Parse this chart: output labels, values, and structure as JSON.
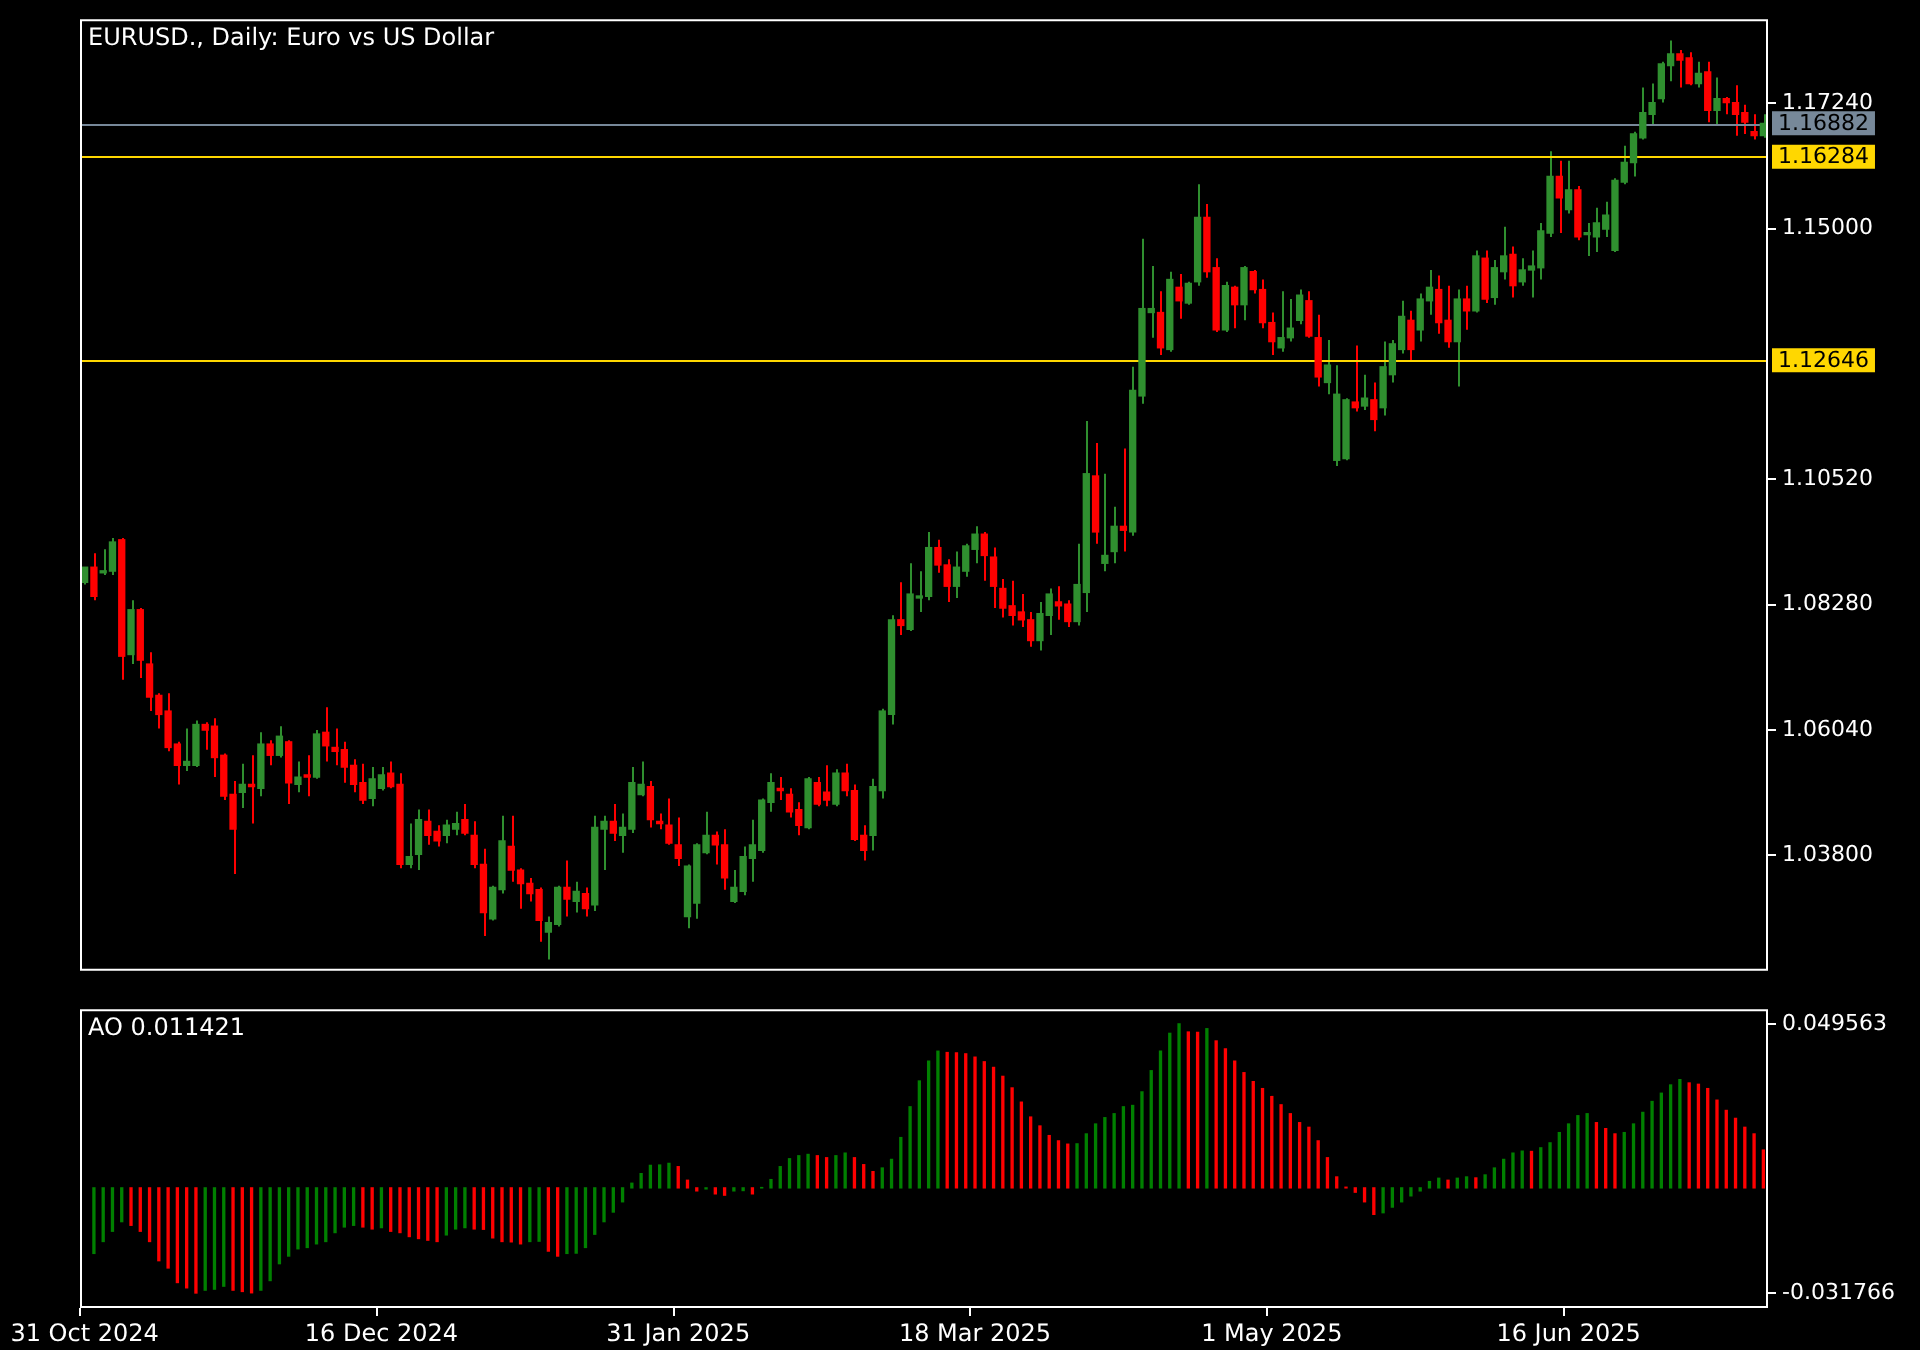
{
  "chart_data": [
    {
      "type": "candlestick",
      "title": "EURUSD., Daily: Euro vs US Dollar",
      "categories": [
        null,
        null,
        null,
        null,
        null,
        null,
        null,
        null,
        null,
        null,
        null,
        null,
        null,
        null,
        null,
        null,
        null,
        null,
        null,
        null,
        null,
        null,
        null,
        null,
        null,
        null,
        null,
        null,
        null,
        null,
        null,
        null,
        null,
        null,
        null,
        null,
        null,
        null,
        null,
        null,
        null,
        null,
        null,
        null,
        null,
        null,
        null,
        null,
        null,
        null,
        null,
        null,
        null,
        null,
        null,
        null,
        null,
        null,
        null,
        null,
        null,
        null,
        null,
        null,
        null,
        null,
        null,
        null,
        null,
        null,
        null,
        null,
        null,
        null,
        null,
        null,
        null,
        null,
        null,
        null,
        null,
        null,
        null,
        null,
        null,
        null,
        null,
        null,
        null,
        null,
        null,
        null,
        null,
        null,
        null,
        null,
        null,
        null,
        null,
        null,
        null,
        null,
        null,
        null,
        null,
        null,
        null,
        null,
        null,
        null,
        null,
        null,
        null,
        null,
        null,
        null,
        null,
        null,
        null,
        null,
        null,
        null,
        null,
        null,
        null,
        null,
        null,
        null,
        null,
        null,
        null,
        null,
        null,
        null,
        null,
        null,
        null,
        null,
        null,
        null,
        null,
        null,
        null,
        null,
        null,
        null,
        null,
        null,
        null,
        null,
        null,
        null,
        null,
        null,
        null,
        null,
        null,
        null,
        null,
        null,
        null,
        null,
        null,
        null,
        null,
        null,
        null,
        null,
        null,
        null,
        null,
        null,
        null,
        null,
        null,
        null,
        null,
        null,
        null,
        null,
        null,
        null
      ],
      "ohlc": [
        [
          1.0868,
          1.0895,
          1.0864,
          1.0895
        ],
        [
          1.0895,
          1.092,
          1.0836,
          1.0843
        ],
        [
          1.0885,
          1.0927,
          1.0881,
          1.0888
        ],
        [
          1.0888,
          1.0947,
          1.0881,
          1.094
        ],
        [
          1.0944,
          1.0947,
          1.0694,
          1.0736
        ],
        [
          1.0739,
          1.0836,
          1.0722,
          1.0819
        ],
        [
          1.0819,
          1.0822,
          1.0697,
          1.0729
        ],
        [
          1.0722,
          1.0743,
          1.0638,
          1.0663
        ],
        [
          1.0666,
          1.067,
          1.0607,
          1.0632
        ],
        [
          1.0638,
          1.067,
          1.0566,
          1.0573
        ],
        [
          1.0579,
          1.0583,
          1.0507,
          1.0541
        ],
        [
          1.0541,
          1.0607,
          1.0531,
          1.0548
        ],
        [
          1.0541,
          1.0621,
          1.0538,
          1.0614
        ],
        [
          1.0614,
          1.0618,
          1.0569,
          1.0604
        ],
        [
          1.0611,
          1.0625,
          1.052,
          1.0555
        ],
        [
          1.0559,
          1.0562,
          1.0479,
          1.0486
        ],
        [
          1.0489,
          1.0513,
          1.0347,
          1.0427
        ],
        [
          1.0493,
          1.0544,
          1.0465,
          1.0507
        ],
        [
          1.0507,
          1.0559,
          1.0437,
          1.0503
        ],
        [
          1.05,
          1.06,
          1.0486,
          1.0579
        ],
        [
          1.0579,
          1.0586,
          1.0541,
          1.0559
        ],
        [
          1.0559,
          1.0611,
          1.0555,
          1.0593
        ],
        [
          1.0583,
          1.0586,
          1.0472,
          1.051
        ],
        [
          1.0507,
          1.0548,
          1.0493,
          1.052
        ],
        [
          1.0524,
          1.0559,
          1.0486,
          1.052
        ],
        [
          1.052,
          1.0604,
          1.0517,
          1.0597
        ],
        [
          1.06,
          1.0645,
          1.0548,
          1.0576
        ],
        [
          1.0573,
          1.0607,
          1.0541,
          1.0566
        ],
        [
          1.0569,
          1.0583,
          1.051,
          1.0538
        ],
        [
          1.0541,
          1.0552,
          1.0493,
          1.0507
        ],
        [
          1.051,
          1.0544,
          1.0472,
          1.0479
        ],
        [
          1.0482,
          1.0538,
          1.0468,
          1.0517
        ],
        [
          1.05,
          1.0538,
          1.0496,
          1.0524
        ],
        [
          1.0527,
          1.0548,
          1.05,
          1.0503
        ],
        [
          1.0507,
          1.0527,
          1.0357,
          1.0364
        ],
        [
          1.0364,
          1.0437,
          1.0357,
          1.0378
        ],
        [
          1.0382,
          1.0462,
          1.0354,
          1.0444
        ],
        [
          1.0441,
          1.0462,
          1.0399,
          1.0416
        ],
        [
          1.0423,
          1.0434,
          1.0396,
          1.0406
        ],
        [
          1.0416,
          1.0444,
          1.0402,
          1.0434
        ],
        [
          1.0427,
          1.0458,
          1.0416,
          1.0437
        ],
        [
          1.0444,
          1.0472,
          1.0416,
          1.042
        ],
        [
          1.0416,
          1.0441,
          1.0357,
          1.0364
        ],
        [
          1.0364,
          1.0392,
          1.0236,
          1.0278
        ],
        [
          1.0267,
          1.0326,
          1.0264,
          1.0323
        ],
        [
          1.0319,
          1.0451,
          1.0312,
          1.0406
        ],
        [
          1.0396,
          1.0451,
          1.0333,
          1.0354
        ],
        [
          1.0354,
          1.0357,
          1.0285,
          1.033
        ],
        [
          1.033,
          1.034,
          1.0298,
          1.0312
        ],
        [
          1.0319,
          1.0323,
          1.0226,
          1.0264
        ],
        [
          1.0243,
          1.0271,
          1.0194,
          1.026
        ],
        [
          1.0257,
          1.0326,
          1.0253,
          1.0323
        ],
        [
          1.0323,
          1.0371,
          1.0271,
          1.0302
        ],
        [
          1.0298,
          1.0333,
          1.0278,
          1.0316
        ],
        [
          1.0312,
          1.0323,
          1.0271,
          1.0285
        ],
        [
          1.0292,
          1.0451,
          1.0281,
          1.043
        ],
        [
          1.0427,
          1.0451,
          1.0354,
          1.0441
        ],
        [
          1.0441,
          1.0472,
          1.0406,
          1.042
        ],
        [
          1.0416,
          1.0455,
          1.0385,
          1.043
        ],
        [
          1.0427,
          1.0538,
          1.042,
          1.051
        ],
        [
          1.0489,
          1.0548,
          1.0486,
          1.0507
        ],
        [
          1.0503,
          1.0513,
          1.043,
          1.0444
        ],
        [
          1.0441,
          1.0455,
          1.0427,
          1.0437
        ],
        [
          1.0434,
          1.0482,
          1.0399,
          1.0402
        ],
        [
          1.0399,
          1.0448,
          1.0361,
          1.0375
        ],
        [
          1.0271,
          1.0364,
          1.025,
          1.0361
        ],
        [
          1.0295,
          1.0402,
          1.0267,
          1.0399
        ],
        [
          1.0385,
          1.0458,
          1.0382,
          1.0416
        ],
        [
          1.0416,
          1.0423,
          1.0364,
          1.0399
        ],
        [
          1.0399,
          1.0427,
          1.0319,
          1.034
        ],
        [
          1.0298,
          1.0354,
          1.0295,
          1.0323
        ],
        [
          1.0316,
          1.0396,
          1.0309,
          1.0378
        ],
        [
          1.0375,
          1.0444,
          1.0333,
          1.0399
        ],
        [
          1.0389,
          1.0482,
          1.0385,
          1.0479
        ],
        [
          1.0475,
          1.0527,
          1.0458,
          1.051
        ],
        [
          1.05,
          1.052,
          1.0479,
          1.0496
        ],
        [
          1.0489,
          1.05,
          1.0448,
          1.0458
        ],
        [
          1.0462,
          1.0475,
          1.0416,
          1.0434
        ],
        [
          1.043,
          1.052,
          1.0427,
          1.0517
        ],
        [
          1.051,
          1.052,
          1.0468,
          1.0472
        ],
        [
          1.0493,
          1.0541,
          1.0468,
          1.0479
        ],
        [
          1.0472,
          1.0534,
          1.0468,
          1.0527
        ],
        [
          1.0527,
          1.0544,
          1.0486,
          1.0496
        ],
        [
          1.0496,
          1.0507,
          1.0406,
          1.0409
        ],
        [
          1.0416,
          1.0434,
          1.0371,
          1.0389
        ],
        [
          1.0416,
          1.0517,
          1.0389,
          1.0503
        ],
        [
          1.0496,
          1.0642,
          1.0482,
          1.0638
        ],
        [
          1.0632,
          1.0809,
          1.0614,
          1.0801
        ],
        [
          1.0801,
          1.0868,
          1.0774,
          1.0791
        ],
        [
          1.0784,
          1.0902,
          1.0781,
          1.0847
        ],
        [
          1.084,
          1.0888,
          1.0815,
          1.0843
        ],
        [
          1.0843,
          1.0958,
          1.0836,
          1.093
        ],
        [
          1.093,
          1.0944,
          1.0885,
          1.0899
        ],
        [
          1.0899,
          1.0909,
          1.0833,
          1.0861
        ],
        [
          1.0861,
          1.0923,
          1.084,
          1.0895
        ],
        [
          1.0888,
          1.0937,
          1.0878,
          1.0933
        ],
        [
          1.0927,
          1.0968,
          1.0902,
          1.0954
        ],
        [
          1.0954,
          1.0958,
          1.0871,
          1.0916
        ],
        [
          1.0913,
          1.093,
          1.0822,
          1.0861
        ],
        [
          1.0857,
          1.0874,
          1.0805,
          1.0822
        ],
        [
          1.0826,
          1.0871,
          1.0791,
          1.0809
        ],
        [
          1.0815,
          1.0847,
          1.0788,
          1.0801
        ],
        [
          1.0801,
          1.0815,
          1.0753,
          1.0764
        ],
        [
          1.0764,
          1.0833,
          1.0746,
          1.0812
        ],
        [
          1.0809,
          1.0857,
          1.0774,
          1.0847
        ],
        [
          1.0833,
          1.0861,
          1.0801,
          1.0826
        ],
        [
          1.0829,
          1.0836,
          1.0788,
          1.0798
        ],
        [
          1.0798,
          1.0937,
          1.0791,
          1.0864
        ],
        [
          1.085,
          1.1156,
          1.0815,
          1.1062
        ],
        [
          1.1058,
          1.1117,
          1.0937,
          1.0958
        ],
        [
          1.0902,
          1.1062,
          1.0888,
          1.0916
        ],
        [
          1.0923,
          1.1003,
          1.0902,
          1.0968
        ],
        [
          1.0968,
          1.1107,
          1.0923,
          1.0961
        ],
        [
          1.0958,
          1.1253,
          1.0951,
          1.1211
        ],
        [
          1.1201,
          1.1482,
          1.1187,
          1.1357
        ],
        [
          1.135,
          1.1433,
          1.1305,
          1.1357
        ],
        [
          1.135,
          1.1388,
          1.1274,
          1.1287
        ],
        [
          1.1284,
          1.1423,
          1.128,
          1.1409
        ],
        [
          1.1395,
          1.1419,
          1.1339,
          1.1371
        ],
        [
          1.1367,
          1.1405,
          1.1364,
          1.1402
        ],
        [
          1.1405,
          1.1579,
          1.1398,
          1.152
        ],
        [
          1.152,
          1.1544,
          1.1412,
          1.1423
        ],
        [
          1.143,
          1.1447,
          1.1315,
          1.1319
        ],
        [
          1.1319,
          1.1405,
          1.1315,
          1.1398
        ],
        [
          1.1395,
          1.1398,
          1.1322,
          1.1364
        ],
        [
          1.1364,
          1.1433,
          1.1336,
          1.143
        ],
        [
          1.1423,
          1.1426,
          1.1384,
          1.1391
        ],
        [
          1.1391,
          1.1409,
          1.1322,
          1.1332
        ],
        [
          1.1332,
          1.135,
          1.1274,
          1.1298
        ],
        [
          1.1287,
          1.1388,
          1.128,
          1.1305
        ],
        [
          1.1305,
          1.1374,
          1.1298,
          1.1322
        ],
        [
          1.1336,
          1.1391,
          1.1329,
          1.1381
        ],
        [
          1.1371,
          1.1388,
          1.1305,
          1.1308
        ],
        [
          1.1305,
          1.1346,
          1.1218,
          1.1235
        ],
        [
          1.1225,
          1.1301,
          1.1204,
          1.1256
        ],
        [
          1.1086,
          1.1256,
          1.1076,
          1.1204
        ],
        [
          1.1089,
          1.1197,
          1.1086,
          1.1194
        ],
        [
          1.119,
          1.1291,
          1.1173,
          1.118
        ],
        [
          1.1183,
          1.1239,
          1.1176,
          1.1197
        ],
        [
          1.1194,
          1.1225,
          1.1138,
          1.1159
        ],
        [
          1.118,
          1.1298,
          1.1166,
          1.1253
        ],
        [
          1.1239,
          1.1301,
          1.1225,
          1.1294
        ],
        [
          1.1284,
          1.1371,
          1.1277,
          1.1343
        ],
        [
          1.1336,
          1.1353,
          1.1263,
          1.1284
        ],
        [
          1.1319,
          1.1384,
          1.1298,
          1.1374
        ],
        [
          1.1371,
          1.1426,
          1.1346,
          1.1395
        ],
        [
          1.1391,
          1.1416,
          1.1312,
          1.1332
        ],
        [
          1.1336,
          1.1398,
          1.1287,
          1.1298
        ],
        [
          1.1298,
          1.1391,
          1.1218,
          1.1374
        ],
        [
          1.1374,
          1.1398,
          1.1319,
          1.1353
        ],
        [
          1.1353,
          1.1461,
          1.135,
          1.1451
        ],
        [
          1.1447,
          1.1461,
          1.1367,
          1.1374
        ],
        [
          1.1377,
          1.1444,
          1.1364,
          1.143
        ],
        [
          1.1423,
          1.1503,
          1.1409,
          1.1451
        ],
        [
          1.1454,
          1.1468,
          1.1377,
          1.1398
        ],
        [
          1.1405,
          1.1447,
          1.1398,
          1.1426
        ],
        [
          1.1426,
          1.1461,
          1.1377,
          1.1433
        ],
        [
          1.143,
          1.151,
          1.1409,
          1.1496
        ],
        [
          1.1492,
          1.1638,
          1.1485,
          1.1593
        ],
        [
          1.1593,
          1.1621,
          1.1492,
          1.1555
        ],
        [
          1.1534,
          1.1621,
          1.1527,
          1.1569
        ],
        [
          1.1569,
          1.1576,
          1.1479,
          1.1485
        ],
        [
          1.1489,
          1.151,
          1.1451,
          1.1492
        ],
        [
          1.1485,
          1.1537,
          1.1458,
          1.151
        ],
        [
          1.1499,
          1.1548,
          1.1485,
          1.1524
        ],
        [
          1.1461,
          1.159,
          1.1458,
          1.1586
        ],
        [
          1.1583,
          1.1648,
          1.1579,
          1.1618
        ],
        [
          1.1618,
          1.1673,
          1.1593,
          1.1669
        ],
        [
          1.1662,
          1.1752,
          1.1659,
          1.1707
        ],
        [
          1.1704,
          1.1759,
          1.1683,
          1.1725
        ],
        [
          1.1732,
          1.1798,
          1.1725,
          1.1794
        ],
        [
          1.1791,
          1.1836,
          1.1763,
          1.1812
        ],
        [
          1.1812,
          1.1819,
          1.1752,
          1.1801
        ],
        [
          1.1805,
          1.1815,
          1.1756,
          1.1759
        ],
        [
          1.1759,
          1.1798,
          1.1752,
          1.1777
        ],
        [
          1.178,
          1.1798,
          1.169,
          1.1711
        ],
        [
          1.1711,
          1.177,
          1.1687,
          1.1732
        ],
        [
          1.1732,
          1.1735,
          1.1704,
          1.1725
        ],
        [
          1.1725,
          1.1756,
          1.1666,
          1.1704
        ],
        [
          1.1707,
          1.1721,
          1.1669,
          1.169
        ],
        [
          1.1673,
          1.1704,
          1.1659,
          1.1666
        ],
        [
          1.1666,
          1.1704,
          1.1662,
          1.1688
        ]
      ],
      "colors": [
        "#2f8f2f",
        "#ff0000",
        "#2f8f2f",
        "#2f8f2f",
        "#ff0000",
        "#2f8f2f",
        "#ff0000",
        "#ff0000",
        "#ff0000",
        "#ff0000",
        "#ff0000",
        "#2f8f2f",
        "#2f8f2f",
        "#ff0000",
        "#ff0000",
        "#ff0000",
        "#ff0000",
        "#2f8f2f",
        "#ff0000",
        "#2f8f2f",
        "#ff0000",
        "#2f8f2f",
        "#ff0000",
        "#2f8f2f",
        "#ff0000",
        "#2f8f2f",
        "#ff0000",
        "#ff0000",
        "#ff0000",
        "#ff0000",
        "#ff0000",
        "#2f8f2f",
        "#2f8f2f",
        "#ff0000",
        "#ff0000",
        "#2f8f2f",
        "#2f8f2f",
        "#ff0000",
        "#ff0000",
        "#2f8f2f",
        "#2f8f2f",
        "#ff0000",
        "#ff0000",
        "#ff0000",
        "#2f8f2f",
        "#2f8f2f",
        "#ff0000",
        "#ff0000",
        "#ff0000",
        "#ff0000",
        "#2f8f2f",
        "#2f8f2f",
        "#ff0000",
        "#2f8f2f",
        "#ff0000",
        "#2f8f2f",
        "#2f8f2f",
        "#ff0000",
        "#2f8f2f",
        "#2f8f2f",
        "#2f8f2f",
        "#ff0000",
        "#ff0000",
        "#ff0000",
        "#ff0000",
        "#2f8f2f",
        "#2f8f2f",
        "#2f8f2f",
        "#ff0000",
        "#ff0000",
        "#2f8f2f",
        "#2f8f2f",
        "#2f8f2f",
        "#2f8f2f",
        "#2f8f2f",
        "#ff0000",
        "#ff0000",
        "#ff0000",
        "#2f8f2f",
        "#ff0000",
        "#ff0000",
        "#2f8f2f",
        "#ff0000",
        "#ff0000",
        "#ff0000",
        "#2f8f2f",
        "#2f8f2f",
        "#2f8f2f",
        "#ff0000",
        "#2f8f2f",
        "#2f8f2f",
        "#2f8f2f",
        "#ff0000",
        "#ff0000",
        "#2f8f2f",
        "#2f8f2f",
        "#2f8f2f",
        "#ff0000",
        "#ff0000",
        "#ff0000",
        "#ff0000",
        "#ff0000",
        "#ff0000",
        "#2f8f2f",
        "#2f8f2f",
        "#ff0000",
        "#ff0000",
        "#2f8f2f",
        "#2f8f2f",
        "#ff0000",
        "#2f8f2f",
        "#2f8f2f",
        "#ff0000",
        "#2f8f2f",
        "#2f8f2f",
        "#2f8f2f",
        "#ff0000",
        "#2f8f2f",
        "#ff0000",
        "#2f8f2f",
        "#2f8f2f",
        "#ff0000",
        "#ff0000",
        "#2f8f2f",
        "#ff0000",
        "#2f8f2f",
        "#ff0000",
        "#ff0000",
        "#ff0000",
        "#2f8f2f",
        "#2f8f2f",
        "#2f8f2f",
        "#ff0000",
        "#ff0000",
        "#2f8f2f",
        "#2f8f2f",
        "#2f8f2f",
        "#ff0000",
        "#2f8f2f",
        "#ff0000",
        "#2f8f2f",
        "#2f8f2f",
        "#2f8f2f",
        "#ff0000",
        "#2f8f2f",
        "#2f8f2f",
        "#ff0000",
        "#ff0000",
        "#2f8f2f",
        "#ff0000",
        "#2f8f2f",
        "#ff0000",
        "#2f8f2f",
        "#2f8f2f",
        "#ff0000",
        "#2f8f2f",
        "#2f8f2f",
        "#2f8f2f",
        "#2f8f2f",
        "#ff0000",
        "#2f8f2f",
        "#ff0000",
        "#2f8f2f",
        "#2f8f2f",
        "#2f8f2f",
        "#2f8f2f",
        "#2f8f2f",
        "#2f8f2f",
        "#2f8f2f",
        "#2f8f2f",
        "#2f8f2f",
        "#2f8f2f",
        "#ff0000",
        "#ff0000",
        "#2f8f2f",
        "#ff0000",
        "#2f8f2f",
        "#ff0000",
        "#ff0000",
        "#ff0000",
        "#ff0000",
        "#2f8f2f"
      ],
      "ylim": [
        1.0174,
        1.1874
      ],
      "yticks": [
        {
          "value": 1.038,
          "label": "1.03800"
        },
        {
          "value": 1.0604,
          "label": "1.06040"
        },
        {
          "value": 1.0828,
          "label": "1.08280"
        },
        {
          "value": 1.1052,
          "label": "1.10520"
        },
        {
          "value": 1.15,
          "label": "1.15000"
        },
        {
          "value": 1.1724,
          "label": "1.17240"
        }
      ],
      "ref_lines": [
        {
          "axis": "y",
          "value": 1.16882,
          "label": "1.16882",
          "color": "#778899"
        },
        {
          "axis": "y",
          "value": 1.16284,
          "label": "1.16284",
          "color": "#ffd700"
        },
        {
          "axis": "y",
          "value": 1.12646,
          "label": "1.12646",
          "color": "#ffd700"
        }
      ],
      "tick_labels": "y"
    },
    {
      "type": "bar",
      "title": "AO 0.011421",
      "categories": [
        "31 Oct 2024",
        null,
        null,
        null,
        null,
        null,
        null,
        null,
        null,
        null,
        null,
        null,
        null,
        null,
        null,
        null,
        null,
        null,
        null,
        null,
        null,
        null,
        null,
        null,
        null,
        null,
        null,
        null,
        null,
        null,
        null,
        null,
        "16 Dec 2024",
        null,
        null,
        null,
        null,
        null,
        null,
        null,
        null,
        null,
        null,
        null,
        null,
        null,
        null,
        null,
        null,
        null,
        null,
        null,
        null,
        null,
        null,
        null,
        null,
        null,
        null,
        null,
        null,
        null,
        null,
        null,
        "31 Jan 2025",
        null,
        null,
        null,
        null,
        null,
        null,
        null,
        null,
        null,
        null,
        null,
        null,
        null,
        null,
        null,
        null,
        null,
        null,
        null,
        null,
        null,
        null,
        null,
        null,
        null,
        null,
        null,
        null,
        null,
        null,
        null,
        "18 Mar 2025",
        null,
        null,
        null,
        null,
        null,
        null,
        null,
        null,
        null,
        null,
        null,
        null,
        null,
        null,
        null,
        null,
        null,
        null,
        null,
        null,
        null,
        null,
        null,
        null,
        null,
        null,
        null,
        null,
        null,
        null,
        null,
        "1 May 2025",
        null,
        null,
        null,
        null,
        null,
        null,
        null,
        null,
        null,
        null,
        null,
        null,
        null,
        null,
        null,
        null,
        null,
        null,
        null,
        null,
        null,
        null,
        null,
        null,
        null,
        null,
        null,
        null,
        null,
        null,
        null,
        "16 Jun 2025",
        null,
        null,
        null,
        null,
        null,
        null,
        null,
        null,
        null,
        null,
        null,
        null,
        null,
        null,
        null,
        null,
        null,
        null,
        null,
        null,
        null
      ],
      "values": [
        null,
        -0.0198,
        -0.0162,
        -0.0131,
        -0.0102,
        -0.0113,
        -0.0131,
        -0.0162,
        -0.022,
        -0.0242,
        -0.0286,
        -0.0302,
        -0.031766,
        -0.0309,
        -0.0306,
        -0.0297,
        -0.0309,
        -0.0313,
        -0.0317,
        -0.0309,
        -0.028,
        -0.0229,
        -0.0206,
        -0.0184,
        -0.018,
        -0.0169,
        -0.0162,
        -0.0135,
        -0.0118,
        -0.0113,
        -0.0118,
        -0.0124,
        -0.012,
        -0.0131,
        -0.0135,
        -0.0147,
        -0.0153,
        -0.0158,
        -0.0162,
        -0.0142,
        -0.0124,
        -0.012,
        -0.0124,
        -0.0125,
        -0.0151,
        -0.0162,
        -0.0163,
        -0.0169,
        -0.0162,
        -0.0161,
        -0.0191,
        -0.0206,
        -0.0198,
        -0.0197,
        -0.018,
        -0.014,
        -0.0102,
        -0.0073,
        -0.0042,
        0.0014,
        0.0043,
        0.0068,
        0.0069,
        0.0074,
        0.0064,
        0.0023,
        -0.0009,
        -0.0003,
        -0.0018,
        -0.0022,
        -0.0009,
        -0.0008,
        -0.0018,
        0.0001,
        0.0025,
        0.0064,
        0.0088,
        0.0097,
        0.0101,
        0.0097,
        0.0091,
        0.0097,
        0.0105,
        0.0091,
        0.007,
        0.0049,
        0.006,
        0.0086,
        0.0152,
        0.0245,
        0.0323,
        0.0383,
        0.0413,
        0.0409,
        0.0408,
        0.0405,
        0.0395,
        0.0381,
        0.0364,
        0.0337,
        0.0302,
        0.0259,
        0.0214,
        0.0187,
        0.0158,
        0.0142,
        0.0132,
        0.0133,
        0.0163,
        0.0193,
        0.0212,
        0.0224,
        0.0245,
        0.0249,
        0.029,
        0.0354,
        0.0413,
        0.0467,
        0.049563,
        0.0471,
        0.047,
        0.0481,
        0.0444,
        0.042,
        0.0383,
        0.0348,
        0.0321,
        0.03,
        0.0276,
        0.0251,
        0.0224,
        0.0197,
        0.0183,
        0.0142,
        0.0091,
        0.0033,
        0.0002,
        -0.0013,
        -0.0042,
        -0.008,
        -0.0075,
        -0.0058,
        -0.0042,
        -0.0024,
        -0.0009,
        0.0019,
        0.0029,
        0.0023,
        0.0029,
        0.0033,
        0.003,
        0.0039,
        0.006,
        0.0086,
        0.0105,
        0.0111,
        0.011,
        0.0121,
        0.0136,
        0.0167,
        0.0193,
        0.0218,
        0.0224,
        0.0197,
        0.0179,
        0.0163,
        0.0167,
        0.0193,
        0.0228,
        0.0261,
        0.0286,
        0.0311,
        0.0327,
        0.0317,
        0.0313,
        0.03,
        0.0265,
        0.0234,
        0.021,
        0.0183,
        0.0163,
        0.011421
      ],
      "colors": [
        "#008000",
        "#008000",
        "#008000",
        "#008000",
        "#008000",
        "#ff0000",
        "#ff0000",
        "#ff0000",
        "#ff0000",
        "#ff0000",
        "#ff0000",
        "#ff0000",
        "#ff0000",
        "#008000",
        "#008000",
        "#008000",
        "#ff0000",
        "#ff0000",
        "#ff0000",
        "#008000",
        "#008000",
        "#008000",
        "#008000",
        "#008000",
        "#008000",
        "#008000",
        "#008000",
        "#008000",
        "#008000",
        "#008000",
        "#ff0000",
        "#ff0000",
        "#008000",
        "#ff0000",
        "#ff0000",
        "#ff0000",
        "#ff0000",
        "#ff0000",
        "#ff0000",
        "#008000",
        "#008000",
        "#008000",
        "#ff0000",
        "#ff0000",
        "#ff0000",
        "#ff0000",
        "#ff0000",
        "#ff0000",
        "#008000",
        "#008000",
        "#ff0000",
        "#ff0000",
        "#008000",
        "#008000",
        "#008000",
        "#008000",
        "#008000",
        "#008000",
        "#008000",
        "#008000",
        "#008000",
        "#008000",
        "#008000",
        "#008000",
        "#ff0000",
        "#ff0000",
        "#ff0000",
        "#008000",
        "#ff0000",
        "#ff0000",
        "#008000",
        "#008000",
        "#ff0000",
        "#008000",
        "#008000",
        "#008000",
        "#008000",
        "#008000",
        "#008000",
        "#ff0000",
        "#ff0000",
        "#008000",
        "#008000",
        "#ff0000",
        "#ff0000",
        "#ff0000",
        "#008000",
        "#008000",
        "#008000",
        "#008000",
        "#008000",
        "#008000",
        "#008000",
        "#ff0000",
        "#ff0000",
        "#ff0000",
        "#ff0000",
        "#ff0000",
        "#ff0000",
        "#ff0000",
        "#ff0000",
        "#ff0000",
        "#ff0000",
        "#ff0000",
        "#ff0000",
        "#ff0000",
        "#ff0000",
        "#008000",
        "#008000",
        "#008000",
        "#008000",
        "#008000",
        "#008000",
        "#008000",
        "#008000",
        "#008000",
        "#008000",
        "#008000",
        "#008000",
        "#ff0000",
        "#ff0000",
        "#008000",
        "#ff0000",
        "#ff0000",
        "#ff0000",
        "#ff0000",
        "#ff0000",
        "#ff0000",
        "#ff0000",
        "#ff0000",
        "#ff0000",
        "#ff0000",
        "#ff0000",
        "#ff0000",
        "#ff0000",
        "#ff0000",
        "#ff0000",
        "#ff0000",
        "#ff0000",
        "#ff0000",
        "#008000",
        "#008000",
        "#008000",
        "#008000",
        "#008000",
        "#008000",
        "#008000",
        "#ff0000",
        "#008000",
        "#008000",
        "#ff0000",
        "#008000",
        "#008000",
        "#008000",
        "#008000",
        "#008000",
        "#ff0000",
        "#008000",
        "#008000",
        "#008000",
        "#008000",
        "#008000",
        "#008000",
        "#ff0000",
        "#ff0000",
        "#ff0000",
        "#008000",
        "#008000",
        "#008000",
        "#008000",
        "#008000",
        "#008000",
        "#008000",
        "#ff0000",
        "#ff0000",
        "#ff0000",
        "#ff0000",
        "#ff0000",
        "#ff0000",
        "#ff0000",
        "#ff0000",
        "#ff0000"
      ],
      "ylim": [
        -0.0363,
        0.054
      ],
      "yticks": [
        0.049563,
        -0.031766
      ]
    }
  ]
}
